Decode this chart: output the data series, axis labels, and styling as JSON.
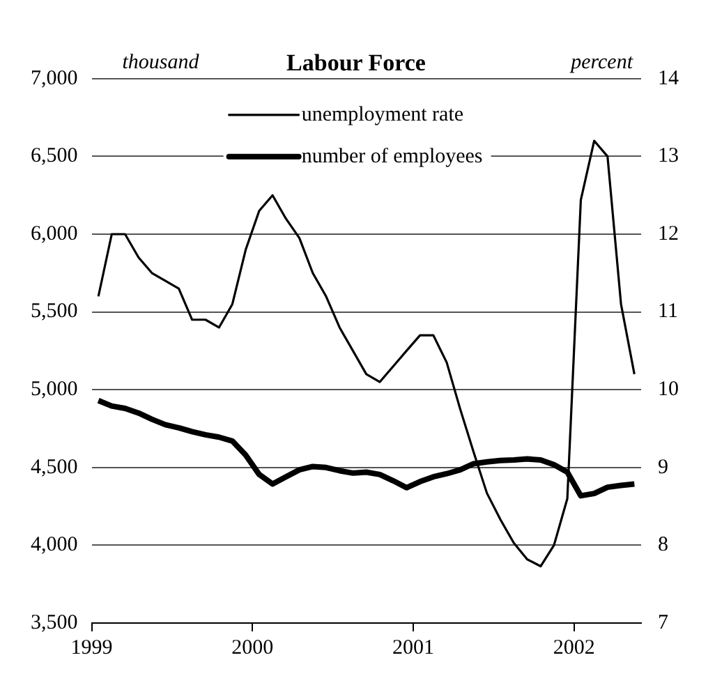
{
  "chart_data": {
    "type": "line",
    "title": "Labour Force",
    "ylabel": "thousand",
    "y2label": "percent",
    "x": [
      1999.042,
      1999.125,
      1999.208,
      1999.292,
      1999.375,
      1999.458,
      1999.542,
      1999.625,
      1999.708,
      1999.792,
      1999.875,
      1999.958,
      2000.042,
      2000.125,
      2000.208,
      2000.292,
      2000.375,
      2000.458,
      2000.542,
      2000.625,
      2000.708,
      2000.792,
      2000.875,
      2000.958,
      2001.042,
      2001.125,
      2001.208,
      2001.292,
      2001.375,
      2001.458,
      2001.542,
      2001.625,
      2001.708,
      2001.792,
      2001.875,
      2001.958,
      2002.042,
      2002.125,
      2002.208,
      2002.292,
      2002.375
    ],
    "series": [
      {
        "name": "unemployment rate",
        "color": "#000000",
        "axis": "y2",
        "values": [
          11.2,
          12.0,
          12.0,
          11.7,
          11.5,
          11.4,
          11.3,
          10.9,
          10.9,
          10.8,
          11.1,
          11.8,
          12.3,
          12.5,
          12.2,
          11.95,
          11.5,
          11.2,
          10.8,
          10.5,
          10.2,
          10.1,
          10.3,
          10.5,
          10.7,
          10.7,
          10.35,
          9.75,
          9.2,
          8.67,
          8.33,
          8.03,
          7.82,
          7.73,
          8.0,
          8.6,
          12.44,
          13.2,
          13.0,
          11.1,
          10.2
        ]
      },
      {
        "name": "number of employees",
        "color": "#000000",
        "values": [
          4930,
          4895,
          4880,
          4850,
          4810,
          4775,
          4755,
          4730,
          4710,
          4695,
          4670,
          4580,
          4455,
          4394,
          4440,
          4485,
          4506,
          4500,
          4479,
          4464,
          4470,
          4455,
          4415,
          4370,
          4409,
          4440,
          4460,
          4485,
          4524,
          4536,
          4545,
          4548,
          4555,
          4548,
          4518,
          4470,
          4318,
          4333,
          4373,
          4385,
          4394
        ]
      }
    ],
    "xlim": [
      1999,
      2002.417
    ],
    "xticks": [
      1999,
      2000,
      2001,
      2002
    ],
    "ylim": [
      3500,
      7000
    ],
    "yticks": [
      {
        "value": 3500,
        "label": "3,500"
      },
      {
        "value": 4000,
        "label": "4,000"
      },
      {
        "value": 4500,
        "label": "4,500"
      },
      {
        "value": 5000,
        "label": "5,000"
      },
      {
        "value": 5500,
        "label": "5,500"
      },
      {
        "value": 6000,
        "label": "6,000"
      },
      {
        "value": 6500,
        "label": "6,500"
      },
      {
        "value": 7000,
        "label": "7,000"
      }
    ],
    "y2lim": [
      7,
      14
    ],
    "y2ticks": [
      7,
      8,
      9,
      10,
      11,
      12,
      13,
      14
    ],
    "grid": "y",
    "legend": "top",
    "marker": "none",
    "line_style": "solid"
  }
}
